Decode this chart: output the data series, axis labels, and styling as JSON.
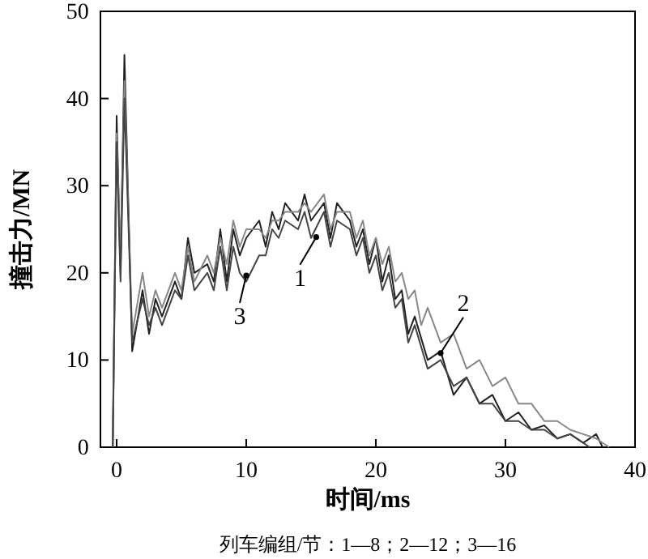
{
  "chart_data": {
    "type": "line",
    "xlabel": "时间/ms",
    "ylabel": "撞击力/MN",
    "xlim": [
      -1.25,
      40
    ],
    "ylim": [
      0,
      50
    ],
    "xticks": [
      0,
      10,
      20,
      30,
      40
    ],
    "yticks": [
      0,
      10,
      20,
      30,
      40,
      50
    ],
    "grid": false,
    "line_style": "solid",
    "series": [
      {
        "color": "#222222",
        "x": [
          -0.3,
          0,
          0.3,
          0.6,
          1.2,
          2,
          2.5,
          3,
          3.5,
          4.5,
          5,
          5.5,
          6,
          7,
          7.5,
          8,
          8.5,
          9,
          9.5,
          10,
          11,
          11.5,
          12,
          12.5,
          13,
          14,
          14.5,
          15,
          16,
          16.5,
          17,
          18,
          18.5,
          19,
          19.5,
          20,
          20.5,
          21,
          21.5,
          22,
          22.5,
          23,
          24,
          25,
          26,
          27,
          28,
          29,
          30,
          31,
          32,
          33,
          34,
          35,
          36,
          37,
          37.5
        ],
        "values": [
          0,
          38,
          20,
          45,
          11,
          18,
          13,
          17,
          15,
          19,
          17,
          24,
          20,
          21,
          19,
          25,
          19,
          25,
          22,
          24,
          26,
          23,
          27,
          25,
          28,
          26,
          29,
          26,
          28,
          24,
          28,
          26,
          23,
          25,
          21,
          24,
          19,
          22,
          17,
          18,
          13,
          15,
          10,
          11,
          6,
          8,
          5,
          6,
          3,
          4,
          2,
          2.5,
          1,
          1.5,
          0.5,
          1.5,
          0
        ]
      },
      {
        "color": "#888888",
        "x": [
          -0.3,
          0,
          0.3,
          0.6,
          1.2,
          2,
          2.5,
          3,
          3.5,
          4.5,
          5,
          5.5,
          6,
          7,
          7.5,
          8,
          8.5,
          9,
          9.5,
          10,
          11,
          11.5,
          12,
          12.5,
          13,
          14,
          14.5,
          15,
          16,
          16.5,
          17,
          18,
          18.5,
          19,
          19.5,
          20,
          20.5,
          21,
          21.5,
          22,
          22.5,
          23,
          23.5,
          24,
          25,
          26,
          27,
          28,
          29,
          30,
          31,
          32,
          33,
          34,
          35,
          36,
          37,
          38
        ],
        "values": [
          0,
          36,
          22,
          42,
          13,
          20,
          15,
          18,
          16,
          20,
          18,
          23,
          19,
          22,
          20,
          24,
          21,
          26,
          23,
          25,
          25,
          24,
          26,
          26,
          27,
          27,
          28,
          27,
          29,
          25,
          27,
          27,
          24,
          26,
          22,
          24,
          21,
          23,
          19,
          20,
          17,
          18,
          14,
          16,
          12,
          13,
          9,
          10,
          7,
          8,
          5,
          5,
          3,
          3,
          2,
          1.5,
          1,
          0
        ]
      },
      {
        "color": "#444444",
        "x": [
          -0.3,
          0,
          0.3,
          0.6,
          1.2,
          2,
          2.5,
          3,
          3.5,
          4.5,
          5,
          5.5,
          6,
          7,
          7.5,
          8,
          8.5,
          9,
          9.5,
          10,
          11,
          11.5,
          12,
          12.5,
          13,
          14,
          14.5,
          15,
          16,
          16.5,
          17,
          18,
          18.5,
          19,
          19.5,
          20,
          20.5,
          21,
          21.5,
          22,
          22.5,
          23,
          24,
          25,
          26,
          27,
          28,
          29,
          30,
          31,
          32,
          33,
          34,
          35,
          36,
          36.5
        ],
        "values": [
          0,
          35,
          19,
          40,
          12,
          17,
          14,
          16,
          14,
          18,
          17,
          22,
          18,
          20,
          18,
          23,
          18,
          23,
          20,
          19,
          22,
          22,
          25,
          24,
          26,
          25,
          27,
          24,
          27,
          23,
          26,
          25,
          22,
          24,
          20,
          22,
          18,
          20,
          16,
          17,
          12,
          14,
          9,
          10,
          7,
          8,
          5,
          5,
          3,
          3,
          2,
          2,
          1,
          1.5,
          0.5,
          0
        ]
      }
    ],
    "annotations": [
      {
        "text": "1",
        "x": 15.4,
        "y": 24.1
      },
      {
        "text": "2",
        "x": 25,
        "y": 10.8
      },
      {
        "text": "3",
        "x": 10,
        "y": 19.7
      },
      "列车编组/节：1—8；2—12；3—16"
    ]
  }
}
